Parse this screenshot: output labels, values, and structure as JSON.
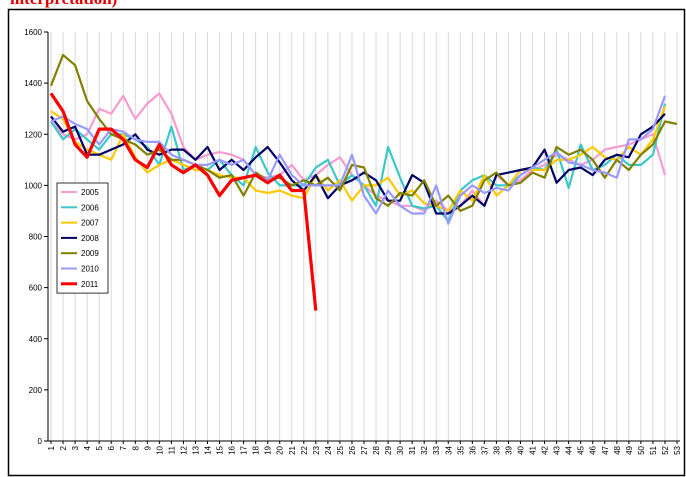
{
  "chart_data": {
    "type": "line",
    "title": "interpretation)",
    "categories": [
      "1",
      "2",
      "3",
      "4",
      "5",
      "6",
      "7",
      "8",
      "9",
      "10",
      "11",
      "12",
      "13",
      "14",
      "15",
      "16",
      "17",
      "18",
      "19",
      "20",
      "21",
      "22",
      "23",
      "24",
      "25",
      "26",
      "27",
      "28",
      "29",
      "30",
      "31",
      "32",
      "33",
      "34",
      "35",
      "36",
      "37",
      "38",
      "39",
      "40",
      "41",
      "42",
      "43",
      "44",
      "45",
      "46",
      "47",
      "48",
      "49",
      "50",
      "51",
      "52",
      "53"
    ],
    "ylim": [
      0,
      1600
    ],
    "yticks": [
      0,
      200,
      400,
      600,
      800,
      1000,
      1200,
      1400,
      1600
    ],
    "legend": "left",
    "series": [
      {
        "name": "2005",
        "color": "#f79bd0",
        "values": [
          1250,
          1200,
          1180,
          1200,
          1300,
          1280,
          1350,
          1260,
          1320,
          1360,
          1280,
          1150,
          1100,
          1120,
          1130,
          1120,
          1100,
          1040,
          1030,
          1040,
          1080,
          1020,
          1040,
          1080,
          1110,
          1040,
          1000,
          960,
          940,
          920,
          920,
          900,
          940,
          900,
          920,
          980,
          920,
          1040,
          1000,
          1020,
          1060,
          1080,
          1120,
          1100,
          1080,
          1100,
          1140,
          1150,
          1160,
          1180,
          1200,
          1040,
          null
        ]
      },
      {
        "name": "2006",
        "color": "#3cc8c8",
        "values": [
          1250,
          1180,
          1220,
          1180,
          1140,
          1200,
          1200,
          1180,
          1150,
          1080,
          1230,
          1060,
          1080,
          1060,
          1100,
          1040,
          1000,
          1150,
          1050,
          1000,
          1000,
          1000,
          1070,
          1100,
          1000,
          1040,
          1000,
          920,
          1150,
          1030,
          920,
          910,
          920,
          860,
          980,
          1020,
          1040,
          1000,
          1000,
          1040,
          1070,
          1060,
          1140,
          990,
          1160,
          1060,
          1080,
          1120,
          1080,
          1080,
          1120,
          1320,
          null
        ]
      },
      {
        "name": "2007",
        "color": "#ffc800",
        "values": [
          1290,
          1260,
          1170,
          1140,
          1120,
          1100,
          1200,
          1110,
          1050,
          1080,
          1100,
          1080,
          1060,
          1060,
          1040,
          1030,
          1030,
          980,
          970,
          980,
          960,
          950,
          1040,
          980,
          1020,
          940,
          1000,
          1000,
          1030,
          960,
          980,
          930,
          920,
          900,
          980,
          940,
          1040,
          960,
          1000,
          1060,
          1060,
          1060,
          1100,
          1100,
          1120,
          1150,
          1110,
          1100,
          1150,
          1120,
          1180,
          1310,
          null
        ]
      },
      {
        "name": "2008",
        "color": "#000066",
        "values": [
          1270,
          1210,
          1230,
          1120,
          1120,
          1140,
          1160,
          1200,
          1140,
          1120,
          1140,
          1140,
          1100,
          1150,
          1060,
          1100,
          1060,
          1110,
          1150,
          1090,
          1020,
          980,
          1040,
          950,
          1000,
          1020,
          1050,
          1020,
          940,
          940,
          1040,
          1010,
          890,
          890,
          920,
          960,
          920,
          1040,
          1050,
          1060,
          1070,
          1140,
          1010,
          1060,
          1070,
          1040,
          1100,
          1120,
          1110,
          1200,
          1230,
          1280,
          null
        ]
      },
      {
        "name": "2009",
        "color": "#808000",
        "values": [
          1390,
          1510,
          1470,
          1330,
          1260,
          1200,
          1180,
          1160,
          1120,
          1140,
          1100,
          1100,
          1080,
          1060,
          1030,
          1040,
          960,
          1050,
          1020,
          1030,
          1000,
          1020,
          1000,
          1030,
          980,
          1080,
          1070,
          950,
          920,
          970,
          960,
          1020,
          920,
          960,
          900,
          920,
          1020,
          1050,
          1000,
          1010,
          1050,
          1030,
          1150,
          1120,
          1140,
          1100,
          1030,
          1100,
          1060,
          1120,
          1160,
          1250,
          1240
        ]
      },
      {
        "name": "2010",
        "color": "#9999ff",
        "values": [
          1250,
          1270,
          1240,
          1220,
          1160,
          1220,
          1210,
          1180,
          1170,
          1170,
          1120,
          1100,
          1080,
          1080,
          1100,
          1080,
          1100,
          1040,
          1020,
          1120,
          1040,
          1000,
          1000,
          1000,
          1000,
          1120,
          960,
          890,
          980,
          920,
          890,
          890,
          1000,
          850,
          960,
          1000,
          970,
          990,
          980,
          1040,
          1070,
          1100,
          1130,
          1090,
          1080,
          1060,
          1050,
          1030,
          1180,
          1180,
          1220,
          1350,
          null
        ]
      },
      {
        "name": "2011",
        "color": "#ff0000",
        "values": [
          1360,
          1290,
          1160,
          1110,
          1220,
          1220,
          1180,
          1100,
          1070,
          1160,
          1080,
          1050,
          1080,
          1040,
          960,
          1020,
          1030,
          1040,
          1010,
          1040,
          980,
          980,
          510,
          null,
          null,
          null,
          null,
          null,
          null,
          null,
          null,
          null,
          null,
          null,
          null,
          null,
          null,
          null,
          null,
          null,
          null,
          null,
          null,
          null,
          null,
          null,
          null,
          null,
          null,
          null,
          null,
          null,
          null
        ]
      }
    ]
  }
}
